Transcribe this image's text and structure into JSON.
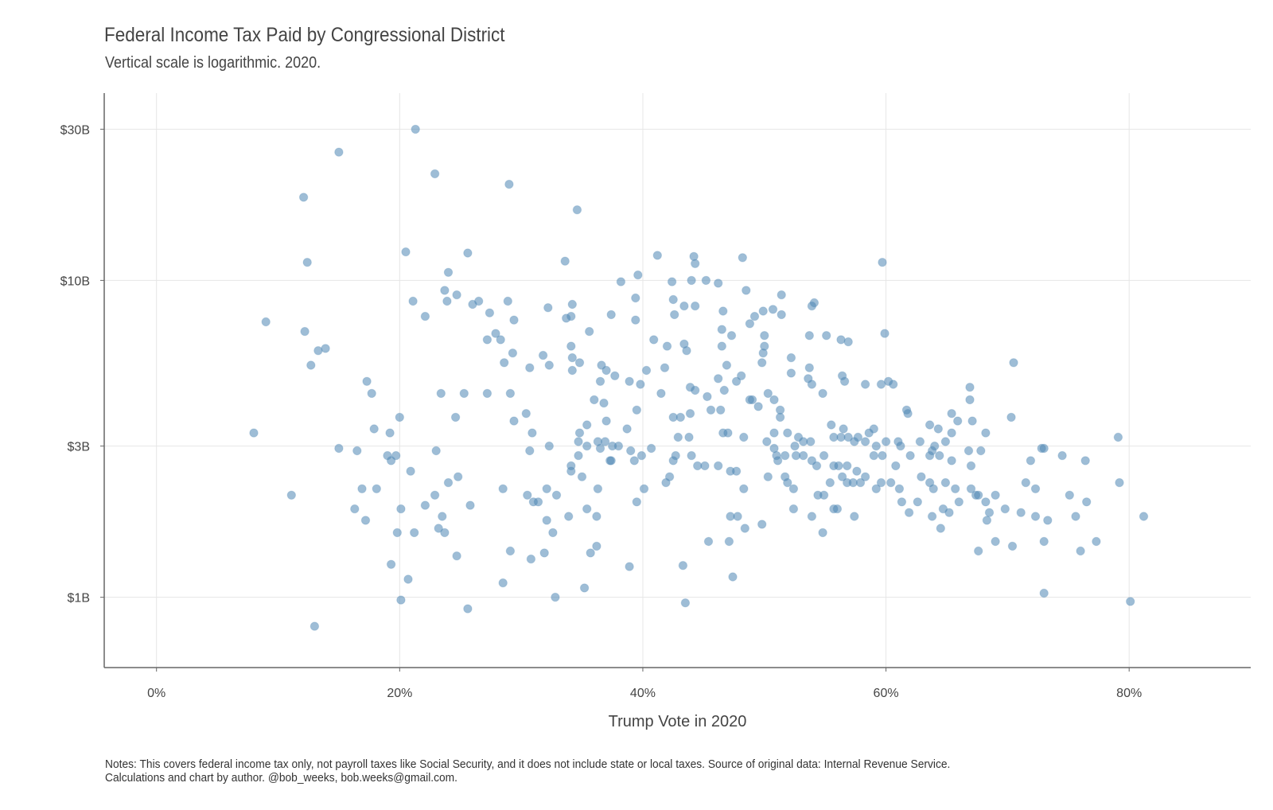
{
  "header": {
    "title": "Federal Income Tax Paid by Congressional District",
    "subtitle": "Vertical scale is logarithmic. 2020."
  },
  "footer": {
    "note_line1": "Notes: This covers federal income tax only, not payroll taxes like Social Security, and it does not include state or local taxes. Source of original data: Internal Revenue Service.",
    "note_line2": "Calculations and chart by author. @bob_weeks, bob.weeks@gmail.com."
  },
  "colors": {
    "point": "#4f87b5",
    "grid": "#e6e6e6",
    "axis": "#666666"
  },
  "chart_data": {
    "type": "scatter",
    "title": "Federal Income Tax Paid by Congressional District",
    "subtitle": "Vertical scale is logarithmic. 2020.",
    "xlabel": "Trump Vote in 2020",
    "ylabel": "",
    "x_scale": "linear",
    "y_scale": "log",
    "xlim": [
      -4.3,
      90
    ],
    "ylim": [
      0.6,
      39
    ],
    "x_ticks": [
      0,
      20,
      40,
      60,
      80
    ],
    "x_tick_labels": [
      "0%",
      "20%",
      "40%",
      "60%",
      "80%"
    ],
    "y_ticks": [
      1,
      3,
      10,
      30
    ],
    "y_tick_labels": [
      "$1B",
      "$3B",
      "$10B",
      "$30B"
    ],
    "grid": true,
    "x_unit": "percent Trump vote",
    "y_unit": "billions of dollars",
    "points": [
      [
        21.3,
        30.0
      ],
      [
        15.0,
        25.4
      ],
      [
        22.9,
        21.7
      ],
      [
        29.0,
        20.1
      ],
      [
        12.1,
        18.3
      ],
      [
        34.6,
        16.7
      ],
      [
        20.5,
        12.3
      ],
      [
        25.6,
        12.2
      ],
      [
        12.4,
        11.4
      ],
      [
        33.6,
        11.5
      ],
      [
        41.2,
        12.0
      ],
      [
        44.2,
        11.9
      ],
      [
        44.3,
        11.3
      ],
      [
        48.2,
        11.8
      ],
      [
        59.7,
        11.4
      ],
      [
        24.0,
        10.6
      ],
      [
        39.6,
        10.4
      ],
      [
        42.4,
        9.9
      ],
      [
        44.0,
        10.0
      ],
      [
        45.2,
        10.0
      ],
      [
        46.2,
        9.8
      ],
      [
        38.2,
        9.9
      ],
      [
        23.7,
        9.3
      ],
      [
        23.9,
        8.6
      ],
      [
        24.7,
        9.0
      ],
      [
        21.1,
        8.6
      ],
      [
        26.0,
        8.4
      ],
      [
        26.5,
        8.6
      ],
      [
        28.9,
        8.6
      ],
      [
        32.2,
        8.2
      ],
      [
        34.2,
        8.4
      ],
      [
        39.4,
        8.8
      ],
      [
        42.5,
        8.7
      ],
      [
        43.4,
        8.3
      ],
      [
        44.3,
        8.3
      ],
      [
        46.6,
        8.0
      ],
      [
        48.5,
        9.3
      ],
      [
        51.4,
        9.0
      ],
      [
        53.9,
        8.3
      ],
      [
        54.1,
        8.5
      ],
      [
        9.0,
        7.4
      ],
      [
        22.1,
        7.7
      ],
      [
        27.4,
        7.9
      ],
      [
        29.4,
        7.5
      ],
      [
        33.7,
        7.6
      ],
      [
        34.1,
        7.7
      ],
      [
        37.4,
        7.8
      ],
      [
        39.4,
        7.5
      ],
      [
        42.6,
        7.8
      ],
      [
        49.2,
        7.7
      ],
      [
        49.9,
        8.0
      ],
      [
        50.7,
        8.1
      ],
      [
        51.4,
        7.8
      ],
      [
        48.8,
        7.3
      ],
      [
        12.2,
        6.9
      ],
      [
        27.9,
        6.8
      ],
      [
        35.6,
        6.9
      ],
      [
        28.3,
        6.5
      ],
      [
        27.2,
        6.5
      ],
      [
        34.1,
        6.2
      ],
      [
        40.9,
        6.5
      ],
      [
        42.0,
        6.2
      ],
      [
        43.4,
        6.3
      ],
      [
        46.5,
        6.2
      ],
      [
        47.3,
        6.7
      ],
      [
        46.5,
        7.0
      ],
      [
        50.0,
        6.7
      ],
      [
        50.0,
        6.2
      ],
      [
        53.7,
        6.7
      ],
      [
        55.1,
        6.7
      ],
      [
        56.3,
        6.5
      ],
      [
        56.9,
        6.4
      ],
      [
        59.9,
        6.8
      ],
      [
        13.3,
        6.0
      ],
      [
        13.9,
        6.1
      ],
      [
        12.7,
        5.4
      ],
      [
        29.3,
        5.9
      ],
      [
        31.8,
        5.8
      ],
      [
        28.6,
        5.5
      ],
      [
        30.7,
        5.3
      ],
      [
        32.3,
        5.4
      ],
      [
        34.2,
        5.7
      ],
      [
        34.2,
        5.2
      ],
      [
        34.8,
        5.5
      ],
      [
        36.6,
        5.4
      ],
      [
        37.0,
        5.2
      ],
      [
        37.7,
        5.0
      ],
      [
        40.3,
        5.2
      ],
      [
        41.8,
        5.3
      ],
      [
        43.6,
        6.0
      ],
      [
        46.9,
        5.4
      ],
      [
        49.9,
        5.9
      ],
      [
        49.8,
        5.5
      ],
      [
        52.2,
        5.7
      ],
      [
        52.2,
        5.1
      ],
      [
        53.7,
        5.3
      ],
      [
        53.6,
        4.9
      ],
      [
        70.5,
        5.5
      ],
      [
        17.3,
        4.8
      ],
      [
        17.7,
        4.4
      ],
      [
        23.4,
        4.4
      ],
      [
        25.3,
        4.4
      ],
      [
        27.2,
        4.4
      ],
      [
        29.1,
        4.4
      ],
      [
        36.5,
        4.8
      ],
      [
        38.9,
        4.8
      ],
      [
        39.8,
        4.7
      ],
      [
        41.5,
        4.4
      ],
      [
        43.9,
        4.6
      ],
      [
        44.3,
        4.5
      ],
      [
        45.3,
        4.3
      ],
      [
        46.2,
        4.9
      ],
      [
        46.7,
        4.5
      ],
      [
        47.7,
        4.8
      ],
      [
        48.1,
        5.0
      ],
      [
        49.0,
        4.2
      ],
      [
        50.3,
        4.4
      ],
      [
        50.8,
        4.2
      ],
      [
        53.9,
        4.7
      ],
      [
        54.8,
        4.4
      ],
      [
        56.4,
        5.0
      ],
      [
        56.6,
        4.8
      ],
      [
        58.3,
        4.7
      ],
      [
        60.2,
        4.8
      ],
      [
        60.6,
        4.7
      ],
      [
        66.9,
        4.6
      ],
      [
        66.9,
        4.2
      ],
      [
        70.3,
        3.7
      ],
      [
        59.6,
        4.7
      ],
      [
        20.0,
        3.7
      ],
      [
        24.6,
        3.7
      ],
      [
        30.4,
        3.8
      ],
      [
        29.4,
        3.6
      ],
      [
        36.0,
        4.2
      ],
      [
        37.0,
        3.6
      ],
      [
        36.8,
        4.1
      ],
      [
        35.4,
        3.5
      ],
      [
        39.5,
        3.9
      ],
      [
        42.5,
        3.7
      ],
      [
        43.1,
        3.7
      ],
      [
        43.9,
        3.8
      ],
      [
        45.6,
        3.9
      ],
      [
        46.4,
        3.9
      ],
      [
        48.8,
        4.2
      ],
      [
        49.5,
        4.0
      ],
      [
        51.3,
        3.9
      ],
      [
        51.3,
        3.7
      ],
      [
        55.5,
        3.5
      ],
      [
        56.5,
        3.4
      ],
      [
        59.0,
        3.4
      ],
      [
        61.7,
        3.9
      ],
      [
        61.8,
        3.8
      ],
      [
        63.6,
        3.5
      ],
      [
        64.3,
        3.4
      ],
      [
        65.4,
        3.8
      ],
      [
        65.9,
        3.6
      ],
      [
        65.4,
        3.3
      ],
      [
        67.1,
        3.6
      ],
      [
        68.2,
        3.3
      ],
      [
        8.0,
        3.3
      ],
      [
        17.9,
        3.4
      ],
      [
        19.2,
        3.3
      ],
      [
        30.9,
        3.3
      ],
      [
        34.8,
        3.3
      ],
      [
        34.7,
        3.1
      ],
      [
        36.3,
        3.1
      ],
      [
        36.9,
        3.1
      ],
      [
        37.5,
        3.0
      ],
      [
        38.7,
        3.4
      ],
      [
        42.9,
        3.2
      ],
      [
        43.8,
        3.2
      ],
      [
        46.6,
        3.3
      ],
      [
        47.0,
        3.3
      ],
      [
        48.3,
        3.2
      ],
      [
        50.2,
        3.1
      ],
      [
        50.8,
        3.3
      ],
      [
        51.9,
        3.3
      ],
      [
        52.8,
        3.2
      ],
      [
        53.2,
        3.1
      ],
      [
        53.8,
        3.1
      ],
      [
        55.7,
        3.2
      ],
      [
        56.3,
        3.2
      ],
      [
        56.9,
        3.2
      ],
      [
        57.4,
        3.1
      ],
      [
        58.3,
        3.1
      ],
      [
        59.2,
        3.0
      ],
      [
        60.0,
        3.1
      ],
      [
        61.0,
        3.1
      ],
      [
        61.2,
        3.0
      ],
      [
        62.8,
        3.1
      ],
      [
        64.0,
        3.0
      ],
      [
        64.9,
        3.1
      ],
      [
        57.7,
        3.2
      ],
      [
        58.6,
        3.3
      ],
      [
        15.0,
        2.95
      ],
      [
        16.5,
        2.9
      ],
      [
        19.0,
        2.8
      ],
      [
        19.3,
        2.7
      ],
      [
        19.7,
        2.8
      ],
      [
        23.0,
        2.9
      ],
      [
        30.7,
        2.9
      ],
      [
        32.3,
        3.0
      ],
      [
        34.1,
        2.6
      ],
      [
        34.7,
        2.8
      ],
      [
        35.4,
        3.0
      ],
      [
        36.5,
        2.95
      ],
      [
        37.3,
        2.7
      ],
      [
        37.4,
        2.7
      ],
      [
        38.0,
        3.0
      ],
      [
        39.0,
        2.9
      ],
      [
        39.3,
        2.7
      ],
      [
        39.9,
        2.8
      ],
      [
        40.7,
        2.95
      ],
      [
        42.5,
        2.7
      ],
      [
        42.7,
        2.8
      ],
      [
        44.0,
        2.8
      ],
      [
        44.5,
        2.6
      ],
      [
        45.1,
        2.6
      ],
      [
        46.2,
        2.6
      ],
      [
        47.2,
        2.5
      ],
      [
        47.7,
        2.5
      ],
      [
        50.8,
        2.95
      ],
      [
        51.0,
        2.8
      ],
      [
        51.1,
        2.7
      ],
      [
        51.7,
        2.8
      ],
      [
        52.5,
        3.0
      ],
      [
        52.6,
        2.8
      ],
      [
        53.2,
        2.8
      ],
      [
        53.9,
        2.7
      ],
      [
        54.3,
        2.6
      ],
      [
        54.9,
        2.8
      ],
      [
        55.7,
        2.6
      ],
      [
        56.1,
        2.6
      ],
      [
        56.8,
        2.6
      ],
      [
        57.6,
        2.5
      ],
      [
        59.0,
        2.8
      ],
      [
        59.7,
        2.8
      ],
      [
        60.8,
        2.6
      ],
      [
        62.0,
        2.8
      ],
      [
        63.6,
        2.8
      ],
      [
        63.8,
        2.9
      ],
      [
        64.4,
        2.8
      ],
      [
        65.4,
        2.7
      ],
      [
        66.8,
        2.9
      ],
      [
        67.8,
        2.9
      ],
      [
        67.0,
        2.6
      ],
      [
        72.8,
        2.95
      ],
      [
        74.5,
        2.8
      ],
      [
        76.4,
        2.7
      ],
      [
        79.1,
        3.2
      ],
      [
        71.9,
        2.7
      ],
      [
        73.0,
        2.95
      ],
      [
        11.1,
        2.1
      ],
      [
        16.9,
        2.2
      ],
      [
        18.1,
        2.2
      ],
      [
        20.9,
        2.5
      ],
      [
        22.9,
        2.1
      ],
      [
        24.0,
        2.3
      ],
      [
        24.8,
        2.4
      ],
      [
        28.5,
        2.2
      ],
      [
        30.5,
        2.1
      ],
      [
        31.0,
        2.0
      ],
      [
        32.1,
        2.2
      ],
      [
        32.9,
        2.1
      ],
      [
        34.1,
        2.5
      ],
      [
        35.0,
        2.4
      ],
      [
        36.3,
        2.2
      ],
      [
        39.5,
        2.0
      ],
      [
        40.1,
        2.2
      ],
      [
        42.2,
        2.4
      ],
      [
        48.3,
        2.2
      ],
      [
        50.3,
        2.4
      ],
      [
        51.7,
        2.4
      ],
      [
        51.9,
        2.3
      ],
      [
        52.4,
        2.2
      ],
      [
        54.4,
        2.1
      ],
      [
        54.9,
        2.1
      ],
      [
        55.4,
        2.3
      ],
      [
        56.4,
        2.4
      ],
      [
        56.8,
        2.3
      ],
      [
        57.3,
        2.3
      ],
      [
        57.9,
        2.3
      ],
      [
        58.3,
        2.4
      ],
      [
        59.2,
        2.2
      ],
      [
        59.6,
        2.3
      ],
      [
        60.4,
        2.3
      ],
      [
        61.1,
        2.2
      ],
      [
        61.3,
        2.0
      ],
      [
        62.9,
        2.4
      ],
      [
        63.6,
        2.3
      ],
      [
        63.9,
        2.2
      ],
      [
        64.9,
        2.3
      ],
      [
        65.7,
        2.2
      ],
      [
        67.0,
        2.2
      ],
      [
        67.4,
        2.1
      ],
      [
        67.6,
        2.1
      ],
      [
        68.2,
        2.0
      ],
      [
        69.0,
        2.1
      ],
      [
        71.5,
        2.3
      ],
      [
        72.3,
        2.2
      ],
      [
        75.1,
        2.1
      ],
      [
        76.5,
        2.0
      ],
      [
        79.2,
        2.3
      ],
      [
        62.6,
        2.0
      ],
      [
        16.3,
        1.9
      ],
      [
        17.2,
        1.75
      ],
      [
        20.1,
        1.9
      ],
      [
        22.1,
        1.95
      ],
      [
        23.5,
        1.8
      ],
      [
        25.8,
        1.95
      ],
      [
        31.4,
        2.0
      ],
      [
        32.1,
        1.75
      ],
      [
        33.9,
        1.8
      ],
      [
        35.4,
        1.9
      ],
      [
        36.2,
        1.8
      ],
      [
        41.9,
        2.3
      ],
      [
        47.2,
        1.8
      ],
      [
        47.8,
        1.8
      ],
      [
        53.9,
        1.8
      ],
      [
        55.7,
        1.9
      ],
      [
        56.0,
        1.9
      ],
      [
        57.4,
        1.8
      ],
      [
        61.9,
        1.85
      ],
      [
        63.8,
        1.8
      ],
      [
        64.7,
        1.9
      ],
      [
        65.2,
        1.85
      ],
      [
        66.0,
        2.0
      ],
      [
        68.5,
        1.85
      ],
      [
        69.8,
        1.9
      ],
      [
        71.1,
        1.85
      ],
      [
        72.3,
        1.8
      ],
      [
        73.3,
        1.75
      ],
      [
        75.6,
        1.8
      ],
      [
        81.2,
        1.8
      ],
      [
        68.3,
        1.75
      ],
      [
        19.8,
        1.6
      ],
      [
        21.2,
        1.6
      ],
      [
        23.2,
        1.65
      ],
      [
        23.7,
        1.6
      ],
      [
        32.6,
        1.6
      ],
      [
        48.4,
        1.65
      ],
      [
        49.8,
        1.7
      ],
      [
        52.4,
        1.9
      ],
      [
        54.8,
        1.6
      ],
      [
        64.5,
        1.65
      ],
      [
        45.4,
        1.5
      ],
      [
        47.1,
        1.5
      ],
      [
        69.0,
        1.5
      ],
      [
        70.4,
        1.45
      ],
      [
        73.0,
        1.5
      ],
      [
        76.0,
        1.4
      ],
      [
        77.3,
        1.5
      ],
      [
        67.6,
        1.4
      ],
      [
        29.1,
        1.4
      ],
      [
        31.9,
        1.38
      ],
      [
        30.8,
        1.32
      ],
      [
        24.7,
        1.35
      ],
      [
        35.7,
        1.38
      ],
      [
        36.2,
        1.45
      ],
      [
        19.3,
        1.27
      ],
      [
        20.7,
        1.14
      ],
      [
        28.5,
        1.11
      ],
      [
        38.9,
        1.25
      ],
      [
        43.3,
        1.26
      ],
      [
        47.4,
        1.16
      ],
      [
        20.1,
        0.98
      ],
      [
        25.6,
        0.92
      ],
      [
        32.8,
        1.0
      ],
      [
        35.2,
        1.07
      ],
      [
        43.5,
        0.96
      ],
      [
        73.0,
        1.03
      ],
      [
        80.1,
        0.97
      ],
      [
        13.0,
        0.81
      ]
    ]
  }
}
